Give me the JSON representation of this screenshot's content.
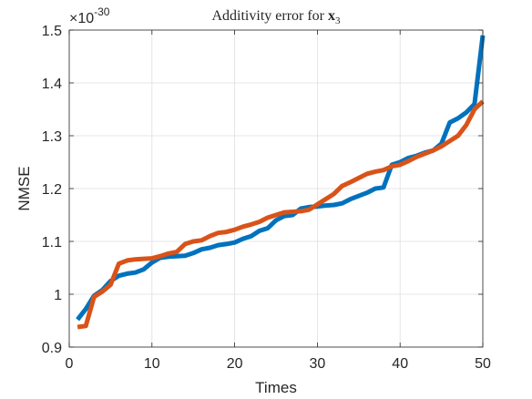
{
  "chart_data": {
    "type": "line",
    "title_prefix": "Additivity error for ",
    "title_var": "x",
    "title_sub": "3",
    "xlabel": "Times",
    "ylabel": "NMSE",
    "exponent_prefix": "×10",
    "exponent_power": "-30",
    "xlim": [
      0,
      50
    ],
    "ylim": [
      0.9,
      1.5
    ],
    "xticks": [
      0,
      10,
      20,
      30,
      40,
      50
    ],
    "yticks": [
      0.9,
      1.0,
      1.1,
      1.2,
      1.3,
      1.4,
      1.5
    ],
    "xtick_labels": [
      "0",
      "10",
      "20",
      "30",
      "40",
      "50"
    ],
    "ytick_labels": [
      "0.9",
      "1",
      "1.1",
      "1.2",
      "1.3",
      "1.4",
      "1.5"
    ],
    "grid": true,
    "series": [
      {
        "color": "#0072BD",
        "x": [
          1,
          2,
          3,
          4,
          5,
          6,
          7,
          8,
          9,
          10,
          11,
          12,
          13,
          14,
          15,
          16,
          17,
          18,
          19,
          20,
          21,
          22,
          23,
          24,
          25,
          26,
          27,
          28,
          29,
          30,
          31,
          32,
          33,
          34,
          35,
          36,
          37,
          38,
          39,
          40,
          41,
          42,
          43,
          44,
          45,
          46,
          47,
          48,
          49,
          50
        ],
        "values": [
          0.952,
          0.972,
          0.997,
          1.008,
          1.025,
          1.035,
          1.039,
          1.041,
          1.047,
          1.06,
          1.069,
          1.071,
          1.072,
          1.073,
          1.078,
          1.085,
          1.088,
          1.093,
          1.095,
          1.098,
          1.105,
          1.11,
          1.12,
          1.125,
          1.14,
          1.148,
          1.15,
          1.162,
          1.165,
          1.166,
          1.168,
          1.169,
          1.172,
          1.18,
          1.186,
          1.192,
          1.2,
          1.202,
          1.245,
          1.25,
          1.258,
          1.262,
          1.268,
          1.272,
          1.285,
          1.325,
          1.333,
          1.344,
          1.36,
          1.49
        ]
      },
      {
        "color": "#D95319",
        "x": [
          1,
          2,
          3,
          4,
          5,
          6,
          7,
          8,
          9,
          10,
          11,
          12,
          13,
          14,
          15,
          16,
          17,
          18,
          19,
          20,
          21,
          22,
          23,
          24,
          25,
          26,
          27,
          28,
          29,
          30,
          31,
          32,
          33,
          34,
          35,
          36,
          37,
          38,
          39,
          40,
          41,
          42,
          43,
          44,
          45,
          46,
          47,
          48,
          49,
          50
        ],
        "values": [
          0.938,
          0.94,
          0.995,
          1.005,
          1.018,
          1.058,
          1.064,
          1.066,
          1.067,
          1.068,
          1.072,
          1.077,
          1.08,
          1.095,
          1.1,
          1.102,
          1.11,
          1.116,
          1.118,
          1.122,
          1.128,
          1.132,
          1.137,
          1.145,
          1.15,
          1.155,
          1.156,
          1.157,
          1.16,
          1.17,
          1.18,
          1.19,
          1.205,
          1.212,
          1.22,
          1.228,
          1.232,
          1.235,
          1.242,
          1.245,
          1.252,
          1.26,
          1.266,
          1.272,
          1.28,
          1.29,
          1.3,
          1.32,
          1.35,
          1.365
        ]
      }
    ]
  }
}
